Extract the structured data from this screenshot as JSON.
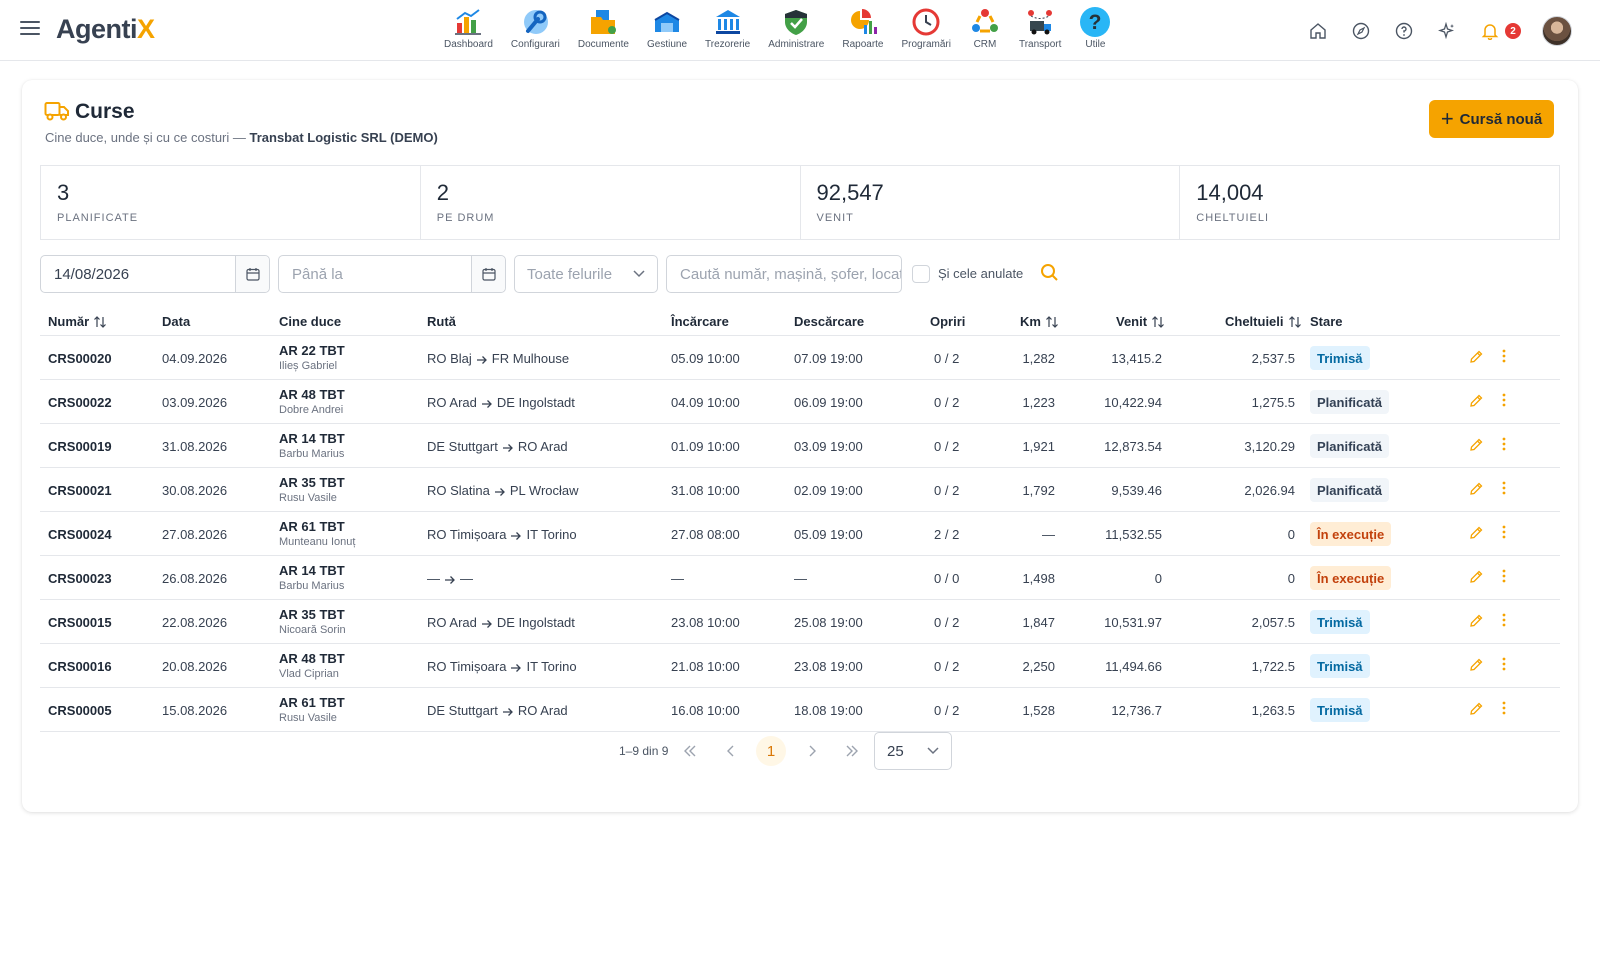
{
  "app": {
    "logo_main": "Agenti",
    "logo_accent": "X"
  },
  "modules": [
    {
      "label": "Dashboard",
      "icon": "dashboard-chart-icon"
    },
    {
      "label": "Configurari",
      "icon": "wrench-gear-icon"
    },
    {
      "label": "Documente",
      "icon": "documents-folder-icon"
    },
    {
      "label": "Gestiune",
      "icon": "warehouse-icon"
    },
    {
      "label": "Trezorerie",
      "icon": "bank-icon"
    },
    {
      "label": "Administrare",
      "icon": "shield-check-icon"
    },
    {
      "label": "Rapoarte",
      "icon": "pie-report-icon"
    },
    {
      "label": "Programări",
      "icon": "clock-icon"
    },
    {
      "label": "CRM",
      "icon": "crm-cycle-icon"
    },
    {
      "label": "Transport",
      "icon": "truck-route-icon"
    },
    {
      "label": "Utile",
      "icon": "question-icon"
    }
  ],
  "topright": {
    "notifications_count": "2"
  },
  "page": {
    "title": "Curse",
    "subtitle_prefix": "Cine duce, unde și cu ce costuri — ",
    "subtitle_company": "Transbat Logistic SRL (DEMO)",
    "new_button": "Cursă nouă"
  },
  "stats": [
    {
      "value": "3",
      "label": "PLANIFICATE"
    },
    {
      "value": "2",
      "label": "PE DRUM"
    },
    {
      "value": "92,547",
      "label": "VENIT"
    },
    {
      "value": "14,004",
      "label": "CHELTUIELI"
    }
  ],
  "filters": {
    "date_from": "14/08/2026",
    "date_to_placeholder": "Până la",
    "type_select": "Toate felurile",
    "search_placeholder": "Caută număr, mașină, șofer, locație",
    "include_cancelled": "Și cele anulate"
  },
  "table": {
    "headers": {
      "numar": "Număr",
      "data": "Data",
      "cine": "Cine duce",
      "ruta": "Rută",
      "incarcare": "Încărcare",
      "descarcare": "Descărcare",
      "opriri": "Opriri",
      "km": "Km",
      "venit": "Venit",
      "cheltuieli": "Cheltuieli",
      "stare": "Stare"
    },
    "rows": [
      {
        "numar": "CRS00020",
        "data": "04.09.2026",
        "car": "AR 22 TBT",
        "driver": "Ilieș Gabriel",
        "from": "RO Blaj",
        "to": "FR Mulhouse",
        "incarcare": "05.09 10:00",
        "descarcare": "07.09 19:00",
        "opriri": "0 / 2",
        "km": "1,282",
        "venit": "13,415.2",
        "cheltuieli": "2,537.5",
        "stare": "Trimisă",
        "stare_type": "trimisa"
      },
      {
        "numar": "CRS00022",
        "data": "03.09.2026",
        "car": "AR 48 TBT",
        "driver": "Dobre Andrei",
        "from": "RO Arad",
        "to": "DE Ingolstadt",
        "incarcare": "04.09 10:00",
        "descarcare": "06.09 19:00",
        "opriri": "0 / 2",
        "km": "1,223",
        "venit": "10,422.94",
        "cheltuieli": "1,275.5",
        "stare": "Planificată",
        "stare_type": "planificata"
      },
      {
        "numar": "CRS00019",
        "data": "31.08.2026",
        "car": "AR 14 TBT",
        "driver": "Barbu Marius",
        "from": "DE Stuttgart",
        "to": "RO Arad",
        "incarcare": "01.09 10:00",
        "descarcare": "03.09 19:00",
        "opriri": "0 / 2",
        "km": "1,921",
        "venit": "12,873.54",
        "cheltuieli": "3,120.29",
        "stare": "Planificată",
        "stare_type": "planificata"
      },
      {
        "numar": "CRS00021",
        "data": "30.08.2026",
        "car": "AR 35 TBT",
        "driver": "Rusu Vasile",
        "from": "RO Slatina",
        "to": "PL Wrocław",
        "incarcare": "31.08 10:00",
        "descarcare": "02.09 19:00",
        "opriri": "0 / 2",
        "km": "1,792",
        "venit": "9,539.46",
        "cheltuieli": "2,026.94",
        "stare": "Planificată",
        "stare_type": "planificata"
      },
      {
        "numar": "CRS00024",
        "data": "27.08.2026",
        "car": "AR 61 TBT",
        "driver": "Munteanu Ionuț",
        "from": "RO Timișoara",
        "to": "IT Torino",
        "incarcare": "27.08 08:00",
        "descarcare": "05.09 19:00",
        "opriri": "2 / 2",
        "km": "—",
        "venit": "11,532.55",
        "cheltuieli": "0",
        "stare": "În execuție",
        "stare_type": "executie"
      },
      {
        "numar": "CRS00023",
        "data": "26.08.2026",
        "car": "AR 14 TBT",
        "driver": "Barbu Marius",
        "from": "—",
        "to": "—",
        "incarcare": "—",
        "descarcare": "—",
        "opriri": "0 / 0",
        "km": "1,498",
        "venit": "0",
        "cheltuieli": "0",
        "stare": "În execuție",
        "stare_type": "executie"
      },
      {
        "numar": "CRS00015",
        "data": "22.08.2026",
        "car": "AR 35 TBT",
        "driver": "Nicoară Sorin",
        "from": "RO Arad",
        "to": "DE Ingolstadt",
        "incarcare": "23.08 10:00",
        "descarcare": "25.08 19:00",
        "opriri": "0 / 2",
        "km": "1,847",
        "venit": "10,531.97",
        "cheltuieli": "2,057.5",
        "stare": "Trimisă",
        "stare_type": "trimisa"
      },
      {
        "numar": "CRS00016",
        "data": "20.08.2026",
        "car": "AR 48 TBT",
        "driver": "Vlad Ciprian",
        "from": "RO Timișoara",
        "to": "IT Torino",
        "incarcare": "21.08 10:00",
        "descarcare": "23.08 19:00",
        "opriri": "0 / 2",
        "km": "2,250",
        "venit": "11,494.66",
        "cheltuieli": "1,722.5",
        "stare": "Trimisă",
        "stare_type": "trimisa"
      },
      {
        "numar": "CRS00005",
        "data": "15.08.2026",
        "car": "AR 61 TBT",
        "driver": "Rusu Vasile",
        "from": "DE Stuttgart",
        "to": "RO Arad",
        "incarcare": "16.08 10:00",
        "descarcare": "18.08 19:00",
        "opriri": "0 / 2",
        "km": "1,528",
        "venit": "12,736.7",
        "cheltuieli": "1,263.5",
        "stare": "Trimisă",
        "stare_type": "trimisa"
      }
    ]
  },
  "pagination": {
    "info": "1–9 din 9",
    "current_page": "1",
    "page_size": "25"
  },
  "colors": {
    "accent": "#f5a300",
    "trimisa_bg": "#e0f2fe",
    "planificata_bg": "#f1f5f9",
    "executie_bg": "#ffedd5"
  }
}
